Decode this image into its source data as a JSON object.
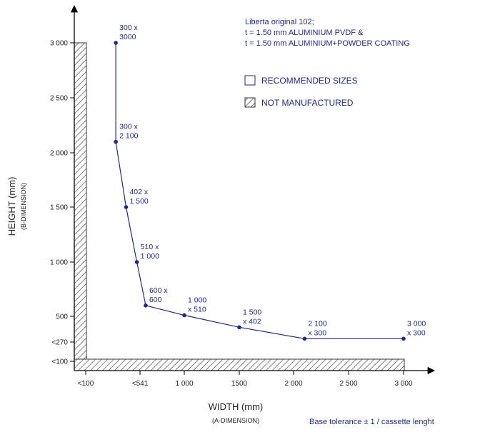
{
  "chart_data": {
    "type": "line",
    "title": "",
    "xlabel": "WIDTH (mm)",
    "xlabel_sub": "(A-DIMENSION)",
    "ylabel": "HEIGHT (mm)",
    "ylabel_sub": "(B-DIMENSION)",
    "xlim": [
      0,
      3000
    ],
    "ylim": [
      0,
      3000
    ],
    "x_ticks": [
      {
        "value": 0,
        "label": "<100"
      },
      {
        "value": 541,
        "label": "<541"
      },
      {
        "value": 1000,
        "label": "1 000"
      },
      {
        "value": 1500,
        "label": "1500"
      },
      {
        "value": 2000,
        "label": "2 000"
      },
      {
        "value": 2500,
        "label": "2 500"
      },
      {
        "value": 3000,
        "label": "3 000"
      }
    ],
    "y_ticks": [
      {
        "value": 0,
        "label": "<100"
      },
      {
        "value": 270,
        "label": "<270"
      },
      {
        "value": 500,
        "label": "500"
      },
      {
        "value": 1000,
        "label": "1 000"
      },
      {
        "value": 1500,
        "label": "1 500"
      },
      {
        "value": 2000,
        "label": "2 000"
      },
      {
        "value": 2500,
        "label": "2 500"
      },
      {
        "value": 3000,
        "label": "3 000"
      }
    ],
    "grid": false,
    "series": [
      {
        "points": [
          {
            "x": 300,
            "y": 3000,
            "label1": "300 x",
            "label2": "3000"
          },
          {
            "x": 300,
            "y": 2100,
            "label1": "300 x",
            "label2": "2 100"
          },
          {
            "x": 402,
            "y": 1500,
            "label1": "402 x",
            "label2": "1 500"
          },
          {
            "x": 510,
            "y": 1000,
            "label1": "510 x",
            "label2": "1 000"
          },
          {
            "x": 600,
            "y": 600,
            "label1": "600 x",
            "label2": "600"
          },
          {
            "x": 1000,
            "y": 510,
            "label1": "1 000",
            "label2": "x 510"
          },
          {
            "x": 1500,
            "y": 402,
            "label1": "1 500",
            "label2": "x 402"
          },
          {
            "x": 2100,
            "y": 300,
            "label1": "2 100",
            "label2": "x 300"
          },
          {
            "x": 3000,
            "y": 300,
            "label1": "3 000",
            "label2": "x 300"
          }
        ]
      }
    ],
    "info_lines": [
      "Liberta original 102;",
      "t = 1.50 mm ALUMINIUM PVDF &",
      "t = 1.50 mm ALUMINIUM+POWDER COATING"
    ],
    "legend": [
      {
        "label": "RECOMMENDED SIZES",
        "swatch": "open"
      },
      {
        "label": "NOT MANUFACTURED",
        "swatch": "hatched"
      }
    ],
    "legend_position": "top-right",
    "footnote": "Base tolerance ± 1 / cassette lenght",
    "colors": {
      "line": "#1f2a8a",
      "text_blue": "#1f2a8a",
      "axis": "#000000"
    }
  }
}
